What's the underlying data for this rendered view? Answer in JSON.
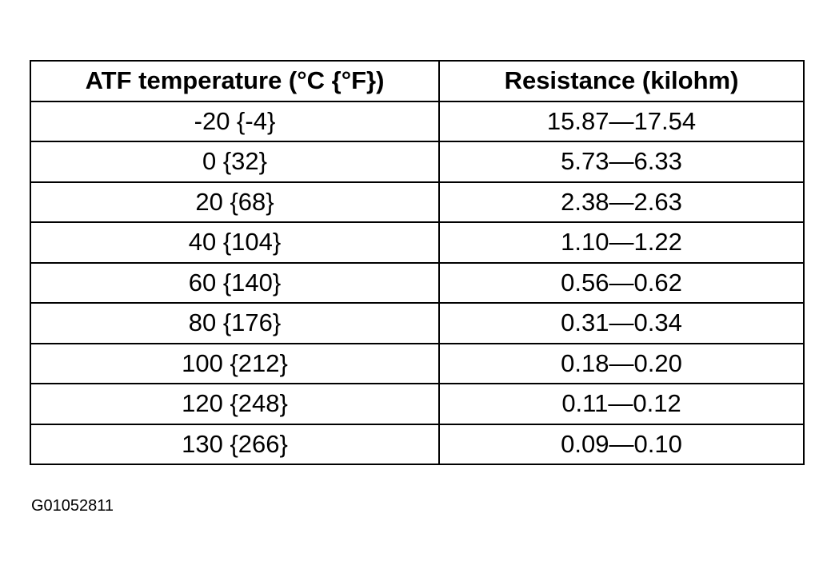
{
  "table": {
    "header": [
      "ATF temperature (°C {°F})",
      "Resistance (kilohm)"
    ],
    "rows": [
      [
        "-20 {-4}",
        "15.87—17.54"
      ],
      [
        "0 {32}",
        "5.73—6.33"
      ],
      [
        "20 {68}",
        "2.38—2.63"
      ],
      [
        "40 {104}",
        "1.10—1.22"
      ],
      [
        "60 {140}",
        "0.56—0.62"
      ],
      [
        "80 {176}",
        "0.31—0.34"
      ],
      [
        "100 {212}",
        "0.18—0.20"
      ],
      [
        "120 {248}",
        "0.11—0.12"
      ],
      [
        "130 {266}",
        "0.09—0.10"
      ]
    ]
  },
  "figure_id": "G01052811"
}
